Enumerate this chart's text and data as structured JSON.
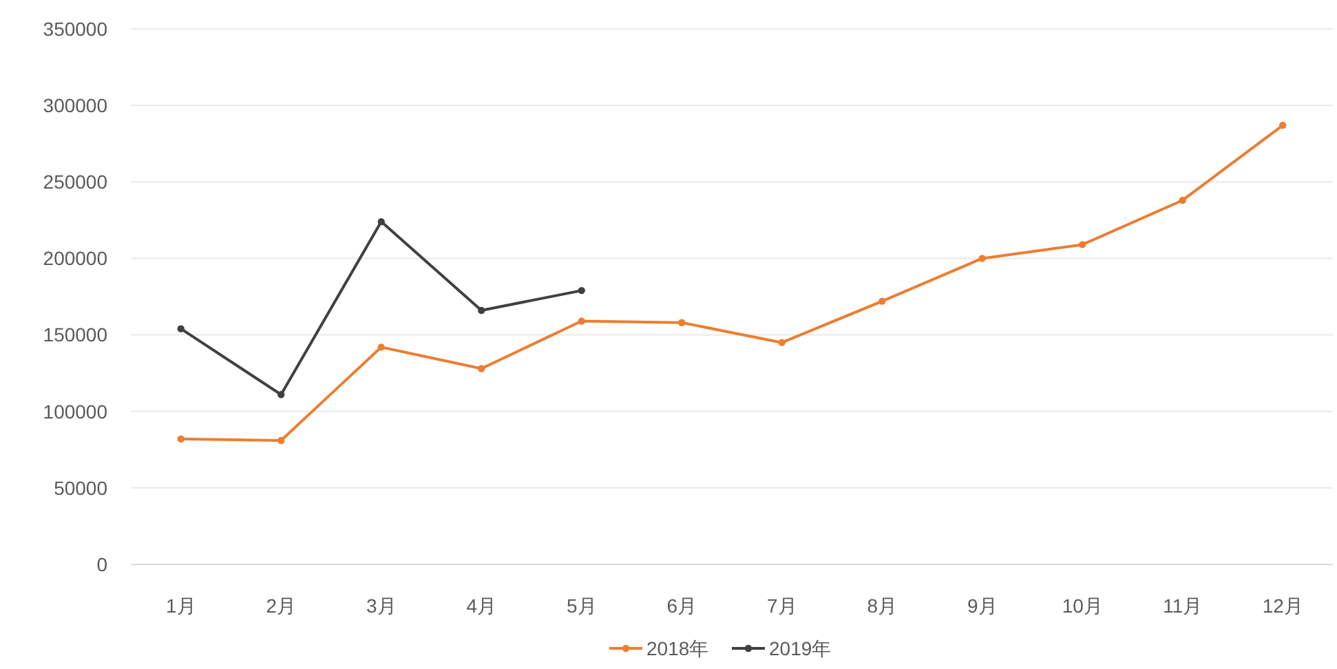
{
  "chart_data": {
    "type": "line",
    "categories": [
      "1月",
      "2月",
      "3月",
      "4月",
      "5月",
      "6月",
      "7月",
      "8月",
      "9月",
      "10月",
      "11月",
      "12月"
    ],
    "series": [
      {
        "name": "2018年",
        "color": "#ed7d31",
        "values": [
          82000,
          81000,
          142000,
          128000,
          159000,
          158000,
          145000,
          172000,
          200000,
          209000,
          238000,
          287000
        ]
      },
      {
        "name": "2019年",
        "color": "#404040",
        "values": [
          154000,
          111000,
          224000,
          166000,
          179000,
          null,
          null,
          null,
          null,
          null,
          null,
          null
        ]
      }
    ],
    "ylim": [
      0,
      350000
    ],
    "yticks": [
      0,
      50000,
      100000,
      150000,
      200000,
      250000,
      300000,
      350000
    ],
    "grid": "y",
    "legend": "bottom",
    "marker": "circle",
    "line_style": "solid"
  }
}
